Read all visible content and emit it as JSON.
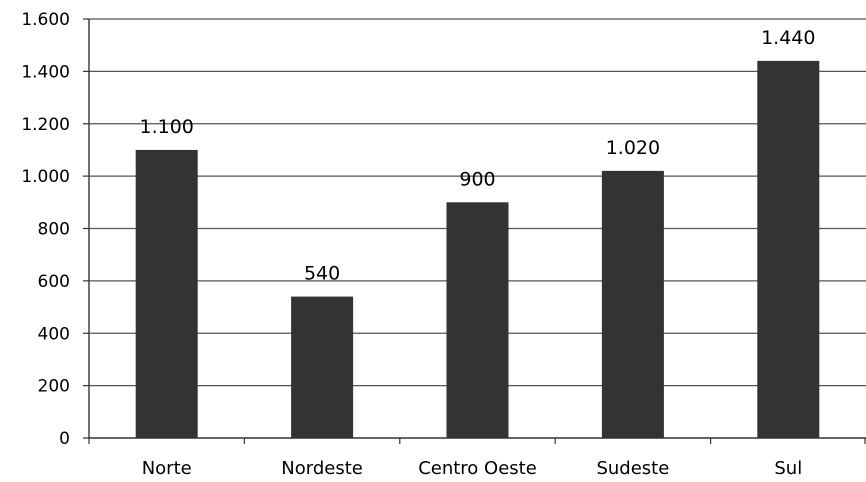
{
  "chart_data": {
    "type": "bar",
    "title": "",
    "xlabel": "",
    "ylabel": "",
    "categories": [
      "Norte",
      "Nordeste",
      "Centro Oeste",
      "Sudeste",
      "Sul"
    ],
    "values": [
      1100,
      540,
      900,
      1020,
      1440
    ],
    "data_labels": [
      "1.100",
      "540",
      "900",
      "1.020",
      "1.440"
    ],
    "ylim": [
      0,
      1600
    ],
    "yticks": [
      0,
      200,
      400,
      600,
      800,
      1000,
      1200,
      1400,
      1600
    ],
    "ytick_labels": [
      "0",
      "200",
      "400",
      "600",
      "800",
      "1.000",
      "1.200",
      "1.400",
      "1.600"
    ],
    "grid": true,
    "legend": "none",
    "bar_color": "#333333",
    "grid_color": "#555555"
  }
}
